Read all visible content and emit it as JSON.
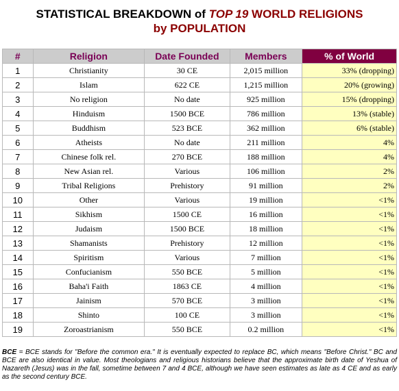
{
  "title": {
    "line1_part1": "STATISTICAL BREAKDOWN of ",
    "line1_part2": "TOP 19",
    "line1_part3": " WORLD RELIGIONS",
    "line2": "by POPULATION"
  },
  "table": {
    "headers": [
      "#",
      "Religion",
      "Date Founded",
      "Members",
      "% of World"
    ],
    "rows": [
      {
        "num": "1",
        "religion": "Christianity",
        "founded": "30 CE",
        "members": "2,015 million",
        "pct": "33% (dropping)"
      },
      {
        "num": "2",
        "religion": "Islam",
        "founded": "622 CE",
        "members": "1,215 million",
        "pct": "20% (growing)"
      },
      {
        "num": "3",
        "religion": "No religion",
        "founded": "No date",
        "members": "925 million",
        "pct": "15% (dropping)"
      },
      {
        "num": "4",
        "religion": "Hinduism",
        "founded": "1500 BCE",
        "members": "786 million",
        "pct": "13% (stable)"
      },
      {
        "num": "5",
        "religion": "Buddhism",
        "founded": "523 BCE",
        "members": "362 million",
        "pct": "6% (stable)"
      },
      {
        "num": "6",
        "religion": "Atheists",
        "founded": "No date",
        "members": "211 million",
        "pct": "4%"
      },
      {
        "num": "7",
        "religion": "Chinese folk rel.",
        "founded": "270 BCE",
        "members": "188 million",
        "pct": "4%"
      },
      {
        "num": "8",
        "religion": "New Asian rel.",
        "founded": "Various",
        "members": "106 million",
        "pct": "2%"
      },
      {
        "num": "9",
        "religion": "Tribal Religions",
        "founded": "Prehistory",
        "members": "91 million",
        "pct": "2%"
      },
      {
        "num": "10",
        "religion": "Other",
        "founded": "Various",
        "members": "19 million",
        "pct": "<1%"
      },
      {
        "num": "11",
        "religion": "Sikhism",
        "founded": "1500 CE",
        "members": "16 million",
        "pct": "<1%"
      },
      {
        "num": "12",
        "religion": "Judaism",
        "founded": "1500 BCE",
        "members": "18 million",
        "pct": "<1%"
      },
      {
        "num": "13",
        "religion": "Shamanists",
        "founded": "Prehistory",
        "members": "12 million",
        "pct": "<1%"
      },
      {
        "num": "14",
        "religion": "Spiritism",
        "founded": "Various",
        "members": "7 million",
        "pct": "<1%"
      },
      {
        "num": "15",
        "religion": "Confucianism",
        "founded": "550 BCE",
        "members": "5 million",
        "pct": "<1%"
      },
      {
        "num": "16",
        "religion": "Baha'i Faith",
        "founded": "1863 CE",
        "members": "4 million",
        "pct": "<1%"
      },
      {
        "num": "17",
        "religion": "Jainism",
        "founded": "570 BCE",
        "members": "3 million",
        "pct": "<1%"
      },
      {
        "num": "18",
        "religion": "Shinto",
        "founded": "100 CE",
        "members": "3 million",
        "pct": "<1%"
      },
      {
        "num": "19",
        "religion": "Zoroastrianism",
        "founded": "550 BCE",
        "members": "0.2 million",
        "pct": "<1%"
      }
    ]
  },
  "footnote": {
    "term": "BCE",
    "text": " = BCE stands for \"Before the common era.\" It is eventually expected to replace BC, which means \"Before Christ.\" BC and BCE are also identical in value. Most theologians and religious historians believe that the approximate birth date of Yeshua of Nazareth (Jesus) was in the fall, sometime between 7 and 4 BCE, although we have seen estimates as late as 4 CE and as early as the second century BCE."
  },
  "colors": {
    "header_bg": "#cccccc",
    "header_text": "#7a0055",
    "pct_header_bg": "#800040",
    "pct_cell_bg": "#ffffc0",
    "title_accent": "#8b0000"
  }
}
